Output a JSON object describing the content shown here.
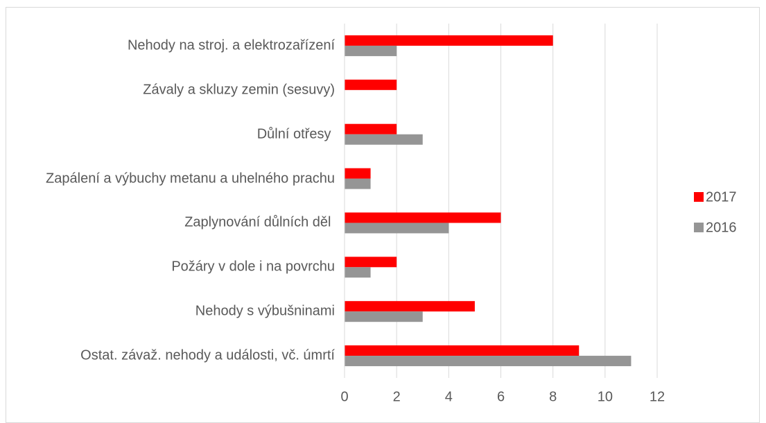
{
  "chart_data": {
    "type": "barh",
    "categories": [
      "Nehody na stroj. a elektrozařízení",
      "Závaly a skluzy zemin (sesuvy)",
      "Důlní otřesy ",
      "Zapálení a výbuchy metanu a uhelného prachu",
      "Zaplynování důlních děl ",
      "Požáry v dole i na povrchu",
      "Nehody s výbušninami",
      "Ostat. závaž. nehody a události, vč. úmrtí"
    ],
    "series": [
      {
        "name": "2017",
        "color": "#ff0000",
        "values": [
          8,
          2,
          2,
          1,
          6,
          2,
          5,
          9
        ]
      },
      {
        "name": "2016",
        "color": "#959595",
        "values": [
          2,
          0,
          3,
          1,
          4,
          1,
          3,
          11
        ]
      }
    ],
    "xlim": [
      0,
      12
    ],
    "xticks": [
      0,
      2,
      4,
      6,
      8,
      10,
      12
    ],
    "grid": true,
    "legend": "right"
  }
}
